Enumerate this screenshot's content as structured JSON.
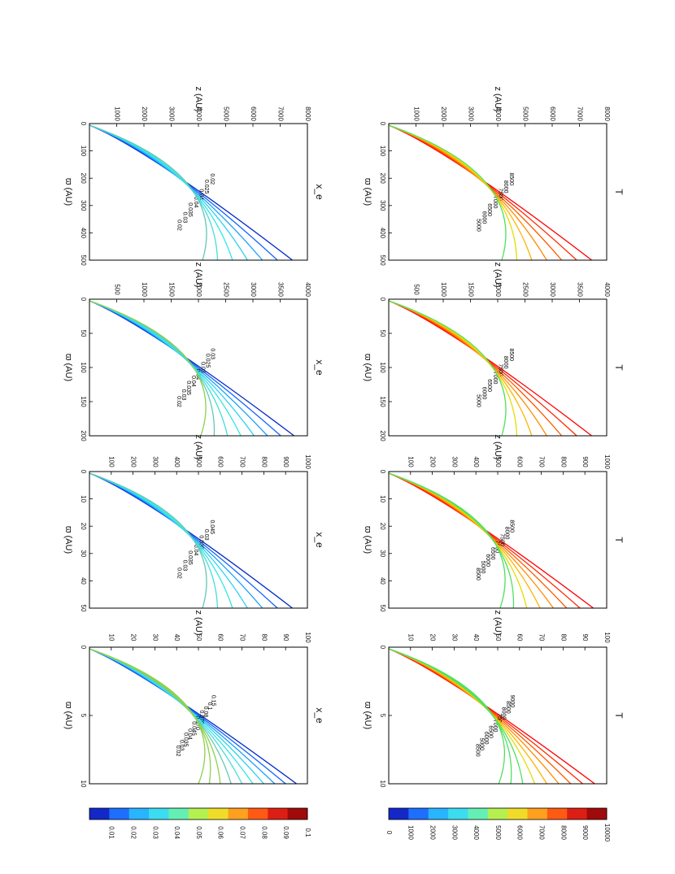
{
  "chart_data": [
    {
      "type": "contour",
      "title": "T",
      "xlabel": "ϖ (AU)",
      "ylabel": "z (AU)",
      "xlim": [
        0,
        500
      ],
      "ylim": [
        0,
        8000
      ],
      "xticks": [
        "0",
        "100",
        "200",
        "300",
        "400",
        "500"
      ],
      "yticks": [
        "1000",
        "2000",
        "3000",
        "4000",
        "5000",
        "6000",
        "7000",
        "8000"
      ],
      "levels": [
        "8500",
        "8000",
        "7500",
        "7000",
        "6500",
        "6000",
        "5000"
      ],
      "colormap": "T"
    },
    {
      "type": "contour",
      "title": "T",
      "xlabel": "ϖ (AU)",
      "ylabel": "z (AU)",
      "xlim": [
        0,
        200
      ],
      "ylim": [
        0,
        4000
      ],
      "xticks": [
        "0",
        "50",
        "100",
        "150",
        "200"
      ],
      "yticks": [
        "500",
        "1000",
        "1500",
        "2000",
        "2500",
        "3000",
        "3500",
        "4000"
      ],
      "levels": [
        "8500",
        "8000",
        "7500",
        "7000",
        "6500",
        "6000",
        "5000"
      ],
      "colormap": "T"
    },
    {
      "type": "contour",
      "title": "T",
      "xlabel": "ϖ (AU)",
      "ylabel": "z (AU)",
      "xlim": [
        0,
        50
      ],
      "ylim": [
        0,
        1000
      ],
      "xticks": [
        "0",
        "10",
        "20",
        "30",
        "40",
        "50"
      ],
      "yticks": [
        "100",
        "200",
        "300",
        "400",
        "500",
        "600",
        "700",
        "800",
        "900",
        "1000"
      ],
      "levels": [
        "8500",
        "8000",
        "7500",
        "7000",
        "6500",
        "6000",
        "5000",
        "8500"
      ],
      "colormap": "T"
    },
    {
      "type": "contour",
      "title": "T",
      "xlabel": "ϖ (AU)",
      "ylabel": "z (AU)",
      "xlim": [
        0,
        10
      ],
      "ylim": [
        0,
        100
      ],
      "xticks": [
        "0",
        "5",
        "10"
      ],
      "yticks": [
        "10",
        "20",
        "30",
        "40",
        "50",
        "60",
        "70",
        "80",
        "90",
        "100"
      ],
      "levels": [
        "9000",
        "8500",
        "8000",
        "7500",
        "7000",
        "6500",
        "6000",
        "5000",
        "8500"
      ],
      "colormap": "T"
    },
    {
      "type": "contour",
      "title": "x_e",
      "xlabel": "ϖ (AU)",
      "ylabel": "z (AU)",
      "xlim": [
        0,
        500
      ],
      "ylim": [
        0,
        8000
      ],
      "xticks": [
        "0",
        "100",
        "200",
        "300",
        "400",
        "500"
      ],
      "yticks": [
        "1000",
        "2000",
        "3000",
        "4000",
        "5000",
        "6000",
        "7000",
        "8000"
      ],
      "levels": [
        "0.02",
        "0.025",
        "0.04",
        "0.04",
        "0.035",
        "0.03",
        "0.02"
      ],
      "colormap": "x"
    },
    {
      "type": "contour",
      "title": "x_e",
      "xlabel": "ϖ (AU)",
      "ylabel": "z (AU)",
      "xlim": [
        0,
        200
      ],
      "ylim": [
        0,
        4000
      ],
      "xticks": [
        "0",
        "50",
        "100",
        "150",
        "200"
      ],
      "yticks": [
        "500",
        "1000",
        "1500",
        "2000",
        "2500",
        "3000",
        "3500",
        "4000"
      ],
      "levels": [
        "0.03",
        "0.025",
        "0.03",
        "0.04",
        "0.04",
        "0.035",
        "0.03",
        "0.02"
      ],
      "colormap": "x"
    },
    {
      "type": "contour",
      "title": "x_e",
      "xlabel": "ϖ (AU)",
      "ylabel": "z (AU)",
      "xlim": [
        0,
        50
      ],
      "ylim": [
        0,
        1000
      ],
      "xticks": [
        "0",
        "10",
        "20",
        "30",
        "40",
        "50"
      ],
      "yticks": [
        "100",
        "200",
        "300",
        "400",
        "500",
        "600",
        "700",
        "800",
        "900",
        "1000"
      ],
      "levels": [
        "0.045",
        "0.03",
        "0.035",
        "0.04",
        "0.035",
        "0.03",
        "0.02"
      ],
      "colormap": "x"
    },
    {
      "type": "contour",
      "title": "x_e",
      "xlabel": "ϖ (AU)",
      "ylabel": "z (AU)",
      "xlim": [
        0,
        10
      ],
      "ylim": [
        0,
        100
      ],
      "xticks": [
        "0",
        "5",
        "10"
      ],
      "yticks": [
        "10",
        "20",
        "30",
        "40",
        "50",
        "60",
        "70",
        "80",
        "90",
        "100"
      ],
      "levels": [
        "0.15",
        "0.1",
        "0.08",
        "0.070",
        "0.070",
        "0.045",
        "0.04",
        "0.035",
        "0.03",
        "0.02"
      ],
      "colormap": "x"
    }
  ],
  "colorbars": [
    {
      "label": "T",
      "ticks": [
        "0",
        "1000",
        "2000",
        "3000",
        "4000",
        "5000",
        "6000",
        "7000",
        "8000",
        "9000",
        "10000"
      ],
      "colors": [
        "#1428c8",
        "#1e6eff",
        "#28b4ff",
        "#3cdcf0",
        "#64f0b4",
        "#b4f050",
        "#f0dc28",
        "#ffa01e",
        "#ff5a14",
        "#dc1e14",
        "#a00a0a"
      ]
    },
    {
      "label": "x_e",
      "ticks": [
        "0.01",
        "0.02",
        "0.03",
        "0.04",
        "0.05",
        "0.06",
        "0.07",
        "0.08",
        "0.09",
        "0.1"
      ],
      "colors": [
        "#1428c8",
        "#1e6eff",
        "#28b4ff",
        "#3cdcf0",
        "#64f0b4",
        "#b4f050",
        "#f0dc28",
        "#ffa01e",
        "#ff5a14",
        "#dc1e14",
        "#a00a0a"
      ]
    }
  ],
  "colors": {
    "T": [
      "#ff0000",
      "#ff2a00",
      "#ff5a00",
      "#ff8c00",
      "#ffb400",
      "#e6dc00",
      "#50e060"
    ],
    "x": [
      "#0028c8",
      "#1464ff",
      "#1ea0ff",
      "#28d2f0",
      "#32e6e6",
      "#46dcdc",
      "#64c8b4",
      "#8cd250"
    ]
  }
}
